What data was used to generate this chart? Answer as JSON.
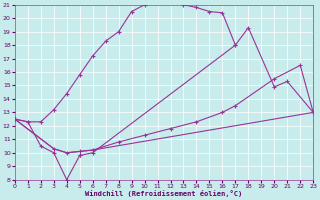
{
  "xlabel": "Windchill (Refroidissement éolien,°C)",
  "bg_color": "#c8ecec",
  "grid_color": "#aadddd",
  "line_color": "#993399",
  "tick_color": "#660066",
  "label_color": "#660066",
  "xlim": [
    0,
    23
  ],
  "ylim": [
    8,
    21
  ],
  "xticks": [
    0,
    1,
    2,
    3,
    4,
    5,
    6,
    7,
    8,
    9,
    10,
    11,
    12,
    13,
    14,
    15,
    16,
    17,
    18,
    19,
    20,
    21,
    22,
    23
  ],
  "yticks": [
    8,
    9,
    10,
    11,
    12,
    13,
    14,
    15,
    16,
    17,
    18,
    19,
    20,
    21
  ],
  "line1_x": [
    0,
    1,
    2,
    3,
    4,
    5,
    6,
    7,
    8,
    9,
    10,
    11,
    12,
    13,
    14,
    15,
    16,
    17
  ],
  "line1_y": [
    12.5,
    12.3,
    12.3,
    13.2,
    14.4,
    15.8,
    17.2,
    18.3,
    19.0,
    20.5,
    21.0,
    21.2,
    21.2,
    21.0,
    20.8,
    20.5,
    20.4,
    18.0
  ],
  "line2_x": [
    0,
    1,
    2,
    3,
    4,
    5,
    6,
    17,
    18,
    20,
    21,
    23
  ],
  "line2_y": [
    12.5,
    12.3,
    10.5,
    10.0,
    8.0,
    9.8,
    10.0,
    18.0,
    19.3,
    14.9,
    15.3,
    13.0
  ],
  "line3_x": [
    0,
    3,
    4,
    5,
    6,
    8,
    10,
    12,
    14,
    16,
    17,
    20,
    22,
    23
  ],
  "line3_y": [
    12.5,
    10.3,
    10.0,
    10.1,
    10.2,
    10.8,
    11.3,
    11.8,
    12.3,
    13.0,
    13.5,
    15.5,
    16.5,
    13.0
  ],
  "line4_x": [
    0,
    3,
    4,
    5,
    6,
    23
  ],
  "line4_y": [
    12.5,
    10.3,
    10.0,
    10.1,
    10.2,
    13.0
  ]
}
